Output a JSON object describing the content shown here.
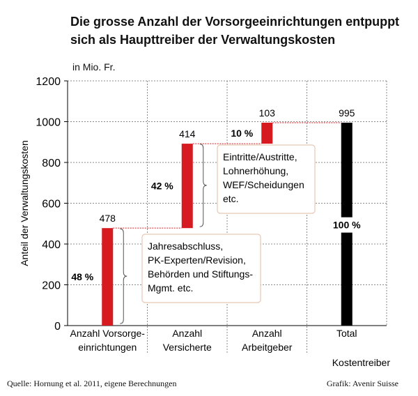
{
  "header": {
    "title": "Die grosse Anzahl der Vorsorgeeinrichtungen entpuppt sich als Haupttreiber der Verwaltungskosten",
    "unit": "in Mio. Fr."
  },
  "footer": {
    "source": "Quelle: Hornung et al. 2011,  eigene Berechnungen",
    "credit": "Grafik: Avenir Suisse"
  },
  "colors": {
    "red": "#d71920",
    "black": "#000000",
    "box_border": "#e8c6b4",
    "connector": "#d71920"
  },
  "chart_data": {
    "type": "bar",
    "subtype": "waterfall",
    "ylabel": "Anteil der Verwaltungskosten",
    "xlabel": "Kostentreiber",
    "ylim": [
      0,
      1200
    ],
    "yticks": [
      0,
      200,
      400,
      600,
      800,
      1000,
      1200
    ],
    "grid": true,
    "categories": [
      [
        "Anzahl Vorsorge-",
        "einrichtungen"
      ],
      [
        "Anzahl",
        "Versicherte"
      ],
      [
        "Anzahl",
        "Arbeitgeber"
      ],
      [
        "Total"
      ]
    ],
    "bars": [
      {
        "start": 0,
        "end": 478,
        "value_label": "478",
        "percent": "48 %",
        "color": "#d71920"
      },
      {
        "start": 478,
        "end": 892,
        "value_label": "414",
        "percent": "42 %",
        "color": "#d71920"
      },
      {
        "start": 892,
        "end": 995,
        "value_label": "103",
        "percent": "10 %",
        "color": "#d71920"
      },
      {
        "start": 0,
        "end": 995,
        "value_label": "995",
        "percent": "100 %",
        "color": "#000000"
      }
    ],
    "annotations": [
      {
        "bar": 0,
        "lines": [
          "Jahresabschluss,",
          "PK-Experten/Revision,",
          "Behörden und Stiftungs-",
          "Mgmt. etc."
        ]
      },
      {
        "bar": 1,
        "lines": [
          "Eintritte/Austritte,",
          "Lohnerhöhung,",
          "WEF/Scheidungen",
          "etc."
        ]
      }
    ]
  }
}
